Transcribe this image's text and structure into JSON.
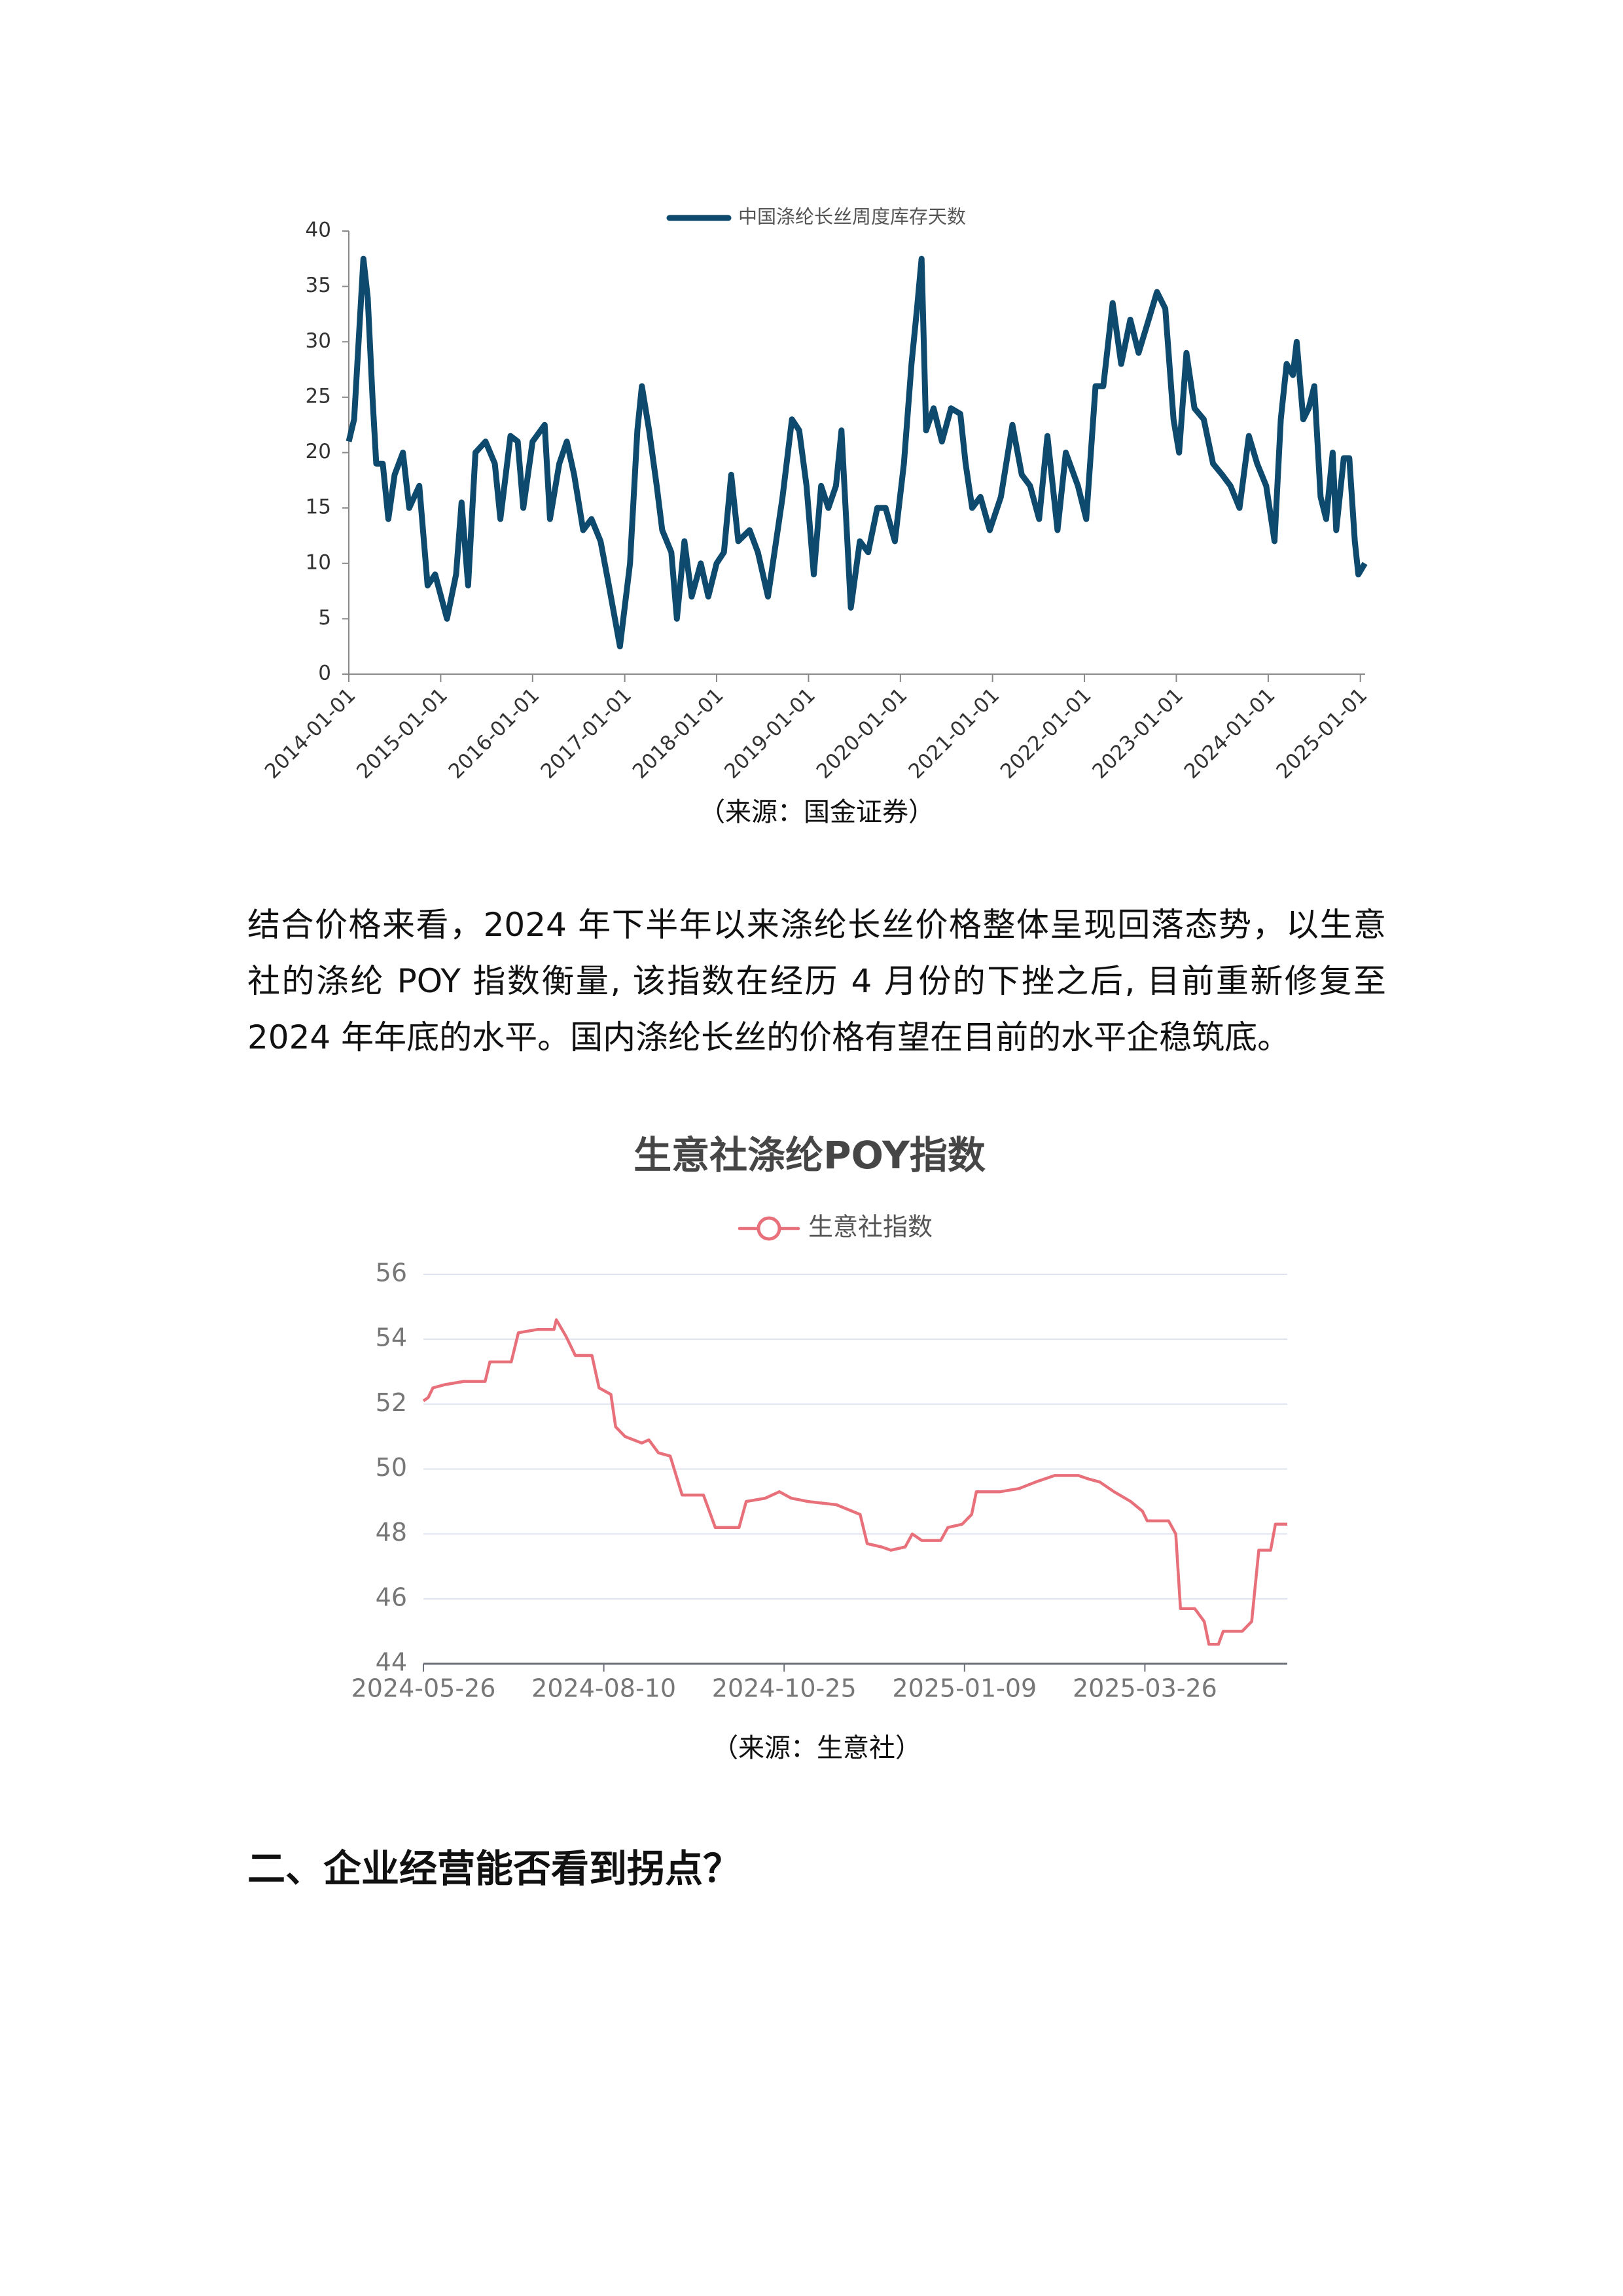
{
  "chart_data": [
    {
      "type": "line",
      "x": [
        "2014-01-01",
        "2014-01-22",
        "2014-02-28",
        "2014-03-17",
        "2014-04-05",
        "2014-04-20",
        "2014-05-16",
        "2014-06-07",
        "2014-07-02",
        "2014-08-04",
        "2014-08-29",
        "2014-10-08",
        "2014-11-10",
        "2014-12-10",
        "2015-01-26",
        "2015-03-03",
        "2015-03-25",
        "2015-04-20",
        "2015-05-19",
        "2015-06-28",
        "2015-08-04",
        "2015-08-26",
        "2015-10-05",
        "2015-11-03",
        "2015-11-25",
        "2016-01-01",
        "2016-02-18",
        "2016-03-10",
        "2016-04-16",
        "2016-05-16",
        "2016-06-14",
        "2016-07-20",
        "2016-08-22",
        "2016-09-27",
        "2016-10-30",
        "2016-12-13",
        "2017-01-22",
        "2017-02-20",
        "2017-03-10",
        "2017-04-08",
        "2017-05-08",
        "2017-05-30",
        "2017-07-05",
        "2017-07-27",
        "2017-08-26",
        "2017-09-24",
        "2017-10-30",
        "2017-11-29",
        "2018-01-01",
        "2018-01-30",
        "2018-02-28",
        "2018-03-28",
        "2018-05-12",
        "2018-06-14",
        "2018-07-24",
        "2018-09-20",
        "2018-10-27",
        "2018-11-25",
        "2018-12-24",
        "2019-01-22",
        "2019-02-20",
        "2019-03-21",
        "2019-04-20",
        "2019-05-12",
        "2019-06-18",
        "2019-07-24",
        "2019-08-26",
        "2019-10-01",
        "2019-11-03",
        "2019-12-10",
        "2020-01-15",
        "2020-02-14",
        "2020-03-07",
        "2020-03-25",
        "2020-04-12",
        "2020-05-12",
        "2020-06-14",
        "2020-07-20",
        "2020-08-26",
        "2020-09-16",
        "2020-10-12",
        "2020-11-14",
        "2020-12-21",
        "2021-02-03",
        "2021-03-21",
        "2021-04-27",
        "2021-05-30",
        "2021-07-05",
        "2021-08-07",
        "2021-09-16",
        "2021-10-19",
        "2021-12-06",
        "2022-01-08",
        "2022-02-14",
        "2022-03-17",
        "2022-04-23",
        "2022-05-27",
        "2022-07-02",
        "2022-08-04",
        "2022-09-13",
        "2022-10-16",
        "2022-11-18",
        "2022-12-21",
        "2023-01-12",
        "2023-02-10",
        "2023-03-14",
        "2023-04-20",
        "2023-05-27",
        "2023-07-02",
        "2023-08-04",
        "2023-09-09",
        "2023-10-16",
        "2023-11-18",
        "2023-12-24",
        "2024-01-26",
        "2024-02-20",
        "2024-03-14",
        "2024-04-08",
        "2024-04-23",
        "2024-05-19",
        "2024-06-10",
        "2024-07-02",
        "2024-07-27",
        "2024-08-18",
        "2024-09-13",
        "2024-09-27",
        "2024-10-27",
        "2024-11-18",
        "2024-12-10",
        "2024-12-24",
        "2025-01-19"
      ],
      "series": [
        {
          "name": "中国涤纶长丝周度库存天数",
          "color": "#0d4a6e",
          "values": [
            21,
            23,
            37.5,
            34,
            25,
            19,
            19,
            14,
            18,
            20,
            15,
            17,
            8,
            9,
            5,
            9,
            15.5,
            8,
            20,
            21,
            19,
            14,
            21.5,
            21,
            15,
            21,
            22.5,
            14,
            19,
            21,
            18,
            13,
            14,
            12,
            8,
            2.5,
            10,
            22,
            26,
            22,
            17,
            13,
            11,
            5,
            12,
            7,
            10,
            7,
            10,
            11,
            18,
            12,
            13,
            11,
            7,
            16,
            23,
            22,
            17,
            9,
            17,
            15,
            17,
            22,
            6,
            12,
            11,
            15,
            15,
            12,
            19,
            28,
            33,
            37.5,
            22,
            24,
            21,
            24,
            23.5,
            19,
            15,
            16,
            13,
            16,
            22.5,
            18,
            17,
            14,
            21.5,
            13,
            20,
            17,
            14,
            26,
            26,
            33.5,
            28,
            32,
            29,
            32,
            34.5,
            33,
            23,
            20,
            29,
            24,
            23,
            19,
            18,
            17,
            15,
            21.5,
            19,
            17,
            12,
            23,
            28,
            27,
            30,
            23,
            24,
            26,
            16,
            14,
            20,
            13,
            19.5,
            19.5,
            12,
            9,
            10
          ]
        }
      ],
      "xlim": [
        "2014-01-01",
        "2025-01-20"
      ],
      "xticks": [
        "2014-01-01",
        "2015-01-01",
        "2016-01-01",
        "2017-01-01",
        "2018-01-01",
        "2019-01-01",
        "2020-01-01",
        "2021-01-01",
        "2022-01-01",
        "2023-01-01",
        "2024-01-01",
        "2025-01-01"
      ],
      "ylim": [
        0,
        40
      ],
      "yticks": [
        0,
        5,
        10,
        15,
        20,
        25,
        30,
        35,
        40
      ],
      "grid": false,
      "legend": "top"
    },
    {
      "type": "line",
      "title": "生意社涤纶POY指数",
      "x": [
        "2024-05-26",
        "2024-05-28",
        "2024-05-30",
        "2024-06-04",
        "2024-06-12",
        "2024-06-21",
        "2024-06-23",
        "2024-07-02",
        "2024-07-05",
        "2024-07-13",
        "2024-07-20",
        "2024-07-21",
        "2024-07-25",
        "2024-07-29",
        "2024-08-05",
        "2024-08-08",
        "2024-08-13",
        "2024-08-15",
        "2024-08-19",
        "2024-08-26",
        "2024-08-29",
        "2024-09-02",
        "2024-09-07",
        "2024-09-12",
        "2024-09-21",
        "2024-09-26",
        "2024-10-06",
        "2024-10-09",
        "2024-10-17",
        "2024-10-23",
        "2024-10-28",
        "2024-11-04",
        "2024-11-16",
        "2024-11-26",
        "2024-11-29",
        "2024-12-05",
        "2024-12-09",
        "2024-12-15",
        "2024-12-18",
        "2024-12-22",
        "2024-12-30",
        "2025-01-02",
        "2025-01-08",
        "2025-01-12",
        "2025-01-14",
        "2025-01-24",
        "2025-02-01",
        "2025-02-08",
        "2025-02-16",
        "2025-02-26",
        "2025-03-02",
        "2025-03-07",
        "2025-03-13",
        "2025-03-20",
        "2025-03-25",
        "2025-03-27",
        "2025-04-05",
        "2025-04-08",
        "2025-04-10",
        "2025-04-16",
        "2025-04-20",
        "2025-04-22",
        "2025-04-26",
        "2025-04-28",
        "2025-05-06",
        "2025-05-10",
        "2025-05-13",
        "2025-05-18",
        "2025-05-20",
        "2025-05-25"
      ],
      "series": [
        {
          "name": "生意社指数",
          "color": "#e8707a",
          "marker": "circle",
          "values": [
            52.1,
            52.2,
            52.5,
            52.6,
            52.7,
            52.7,
            53.3,
            53.3,
            54.2,
            54.3,
            54.3,
            54.6,
            54.1,
            53.5,
            53.5,
            52.5,
            52.3,
            51.3,
            51.0,
            50.8,
            50.9,
            50.5,
            50.4,
            49.2,
            49.2,
            48.2,
            48.2,
            49.0,
            49.1,
            49.3,
            49.1,
            49.0,
            48.9,
            48.6,
            47.7,
            47.6,
            47.5,
            47.6,
            48.0,
            47.8,
            47.8,
            48.2,
            48.3,
            48.6,
            49.3,
            49.3,
            49.4,
            49.6,
            49.8,
            49.8,
            49.7,
            49.6,
            49.3,
            49.0,
            48.7,
            48.4,
            48.4,
            48.0,
            45.7,
            45.7,
            45.3,
            44.6,
            44.6,
            45.0,
            45.0,
            45.3,
            47.5,
            47.5,
            48.3,
            48.3
          ]
        }
      ],
      "xlim": [
        "2024-05-26",
        "2025-05-25"
      ],
      "xticks": [
        "2024-05-26",
        "2024-08-10",
        "2024-10-25",
        "2025-01-09",
        "2025-03-26"
      ],
      "ylim": [
        44,
        56
      ],
      "yticks": [
        44,
        46,
        48,
        50,
        52,
        54,
        56
      ],
      "grid": true,
      "legend": "top"
    }
  ],
  "captions": [
    "（来源：国金证券）",
    "（来源：生意社）"
  ],
  "paragraph": "结合价格来看，2024 年下半年以来涤纶长丝价格整体呈现回落态势，以生意社的涤纶 POY 指数衡量, 该指数在经历 4 月份的下挫之后, 目前重新修复至 2024 年年底的水平。国内涤纶长丝的价格有望在目前的水平企稳筑底。",
  "heading": "二、企业经营能否看到拐点？"
}
